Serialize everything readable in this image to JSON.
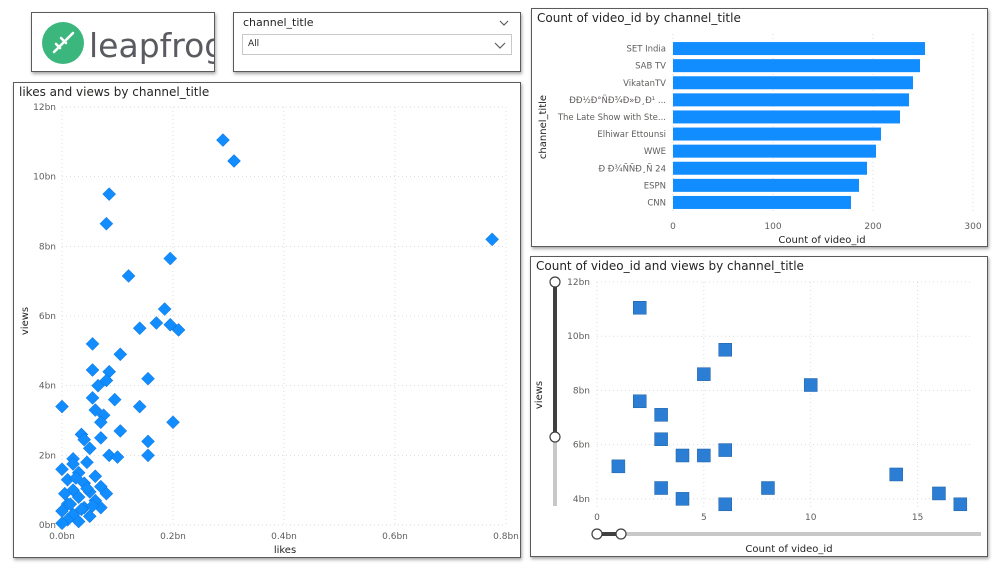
{
  "logo": {
    "text": "leapfrog",
    "colors": {
      "green": "#3bb77e",
      "text": "#595b60"
    }
  },
  "slicer": {
    "field": "channel_title",
    "value": "All"
  },
  "colors": {
    "accent": "#118dff",
    "square": "#2b7ed4",
    "grid": "#dcdcdc",
    "track": "#c8c8c8",
    "text": "#605e5c"
  },
  "chart_data": [
    {
      "type": "scatter",
      "title": "likes and views by channel_title",
      "xlabel": "likes",
      "ylabel": "views",
      "xlim": [
        0,
        0.8
      ],
      "ylim": [
        0,
        12
      ],
      "x_ticks": [
        "0.0bn",
        "0.2bn",
        "0.4bn",
        "0.6bn",
        "0.8bn"
      ],
      "y_ticks": [
        "0bn",
        "2bn",
        "4bn",
        "6bn",
        "8bn",
        "10bn",
        "12bn"
      ],
      "grid": true,
      "marker": "diamond",
      "points": [
        [
          0.29,
          11.05
        ],
        [
          0.31,
          10.45
        ],
        [
          0.085,
          9.5
        ],
        [
          0.08,
          8.65
        ],
        [
          0.775,
          8.2
        ],
        [
          0.195,
          7.65
        ],
        [
          0.12,
          7.15
        ],
        [
          0.185,
          6.2
        ],
        [
          0.17,
          5.8
        ],
        [
          0.195,
          5.75
        ],
        [
          0.21,
          5.6
        ],
        [
          0.14,
          5.65
        ],
        [
          0.055,
          5.2
        ],
        [
          0.105,
          4.9
        ],
        [
          0.055,
          4.45
        ],
        [
          0.085,
          4.4
        ],
        [
          0.155,
          4.2
        ],
        [
          0.08,
          4.15
        ],
        [
          0.065,
          4.0
        ],
        [
          0.095,
          3.6
        ],
        [
          0.055,
          3.65
        ],
        [
          0.0,
          3.4
        ],
        [
          0.14,
          3.4
        ],
        [
          0.06,
          3.3
        ],
        [
          0.075,
          3.15
        ],
        [
          0.07,
          2.95
        ],
        [
          0.2,
          2.95
        ],
        [
          0.105,
          2.7
        ],
        [
          0.035,
          2.6
        ],
        [
          0.07,
          2.5
        ],
        [
          0.155,
          2.4
        ],
        [
          0.05,
          2.2
        ],
        [
          0.085,
          2.0
        ],
        [
          0.155,
          2.0
        ],
        [
          0.02,
          1.9
        ],
        [
          0.045,
          1.8
        ],
        [
          0.0,
          1.6
        ],
        [
          0.03,
          1.5
        ],
        [
          0.06,
          1.4
        ],
        [
          0.01,
          1.3
        ],
        [
          0.04,
          1.2
        ],
        [
          0.07,
          1.1
        ],
        [
          0.02,
          1.0
        ],
        [
          0.05,
          0.95
        ],
        [
          0.005,
          0.9
        ],
        [
          0.03,
          0.8
        ],
        [
          0.06,
          0.7
        ],
        [
          0.01,
          0.6
        ],
        [
          0.04,
          0.5
        ],
        [
          0.07,
          0.5
        ],
        [
          0.0,
          0.4
        ],
        [
          0.02,
          0.3
        ],
        [
          0.05,
          0.25
        ],
        [
          0.01,
          0.15
        ],
        [
          0.03,
          0.1
        ],
        [
          0.0,
          0.05
        ],
        [
          0.015,
          0.6
        ],
        [
          0.045,
          1.05
        ],
        [
          0.025,
          1.35
        ],
        [
          0.08,
          0.9
        ],
        [
          0.035,
          0.45
        ],
        [
          0.055,
          0.55
        ],
        [
          0.02,
          1.75
        ],
        [
          0.1,
          1.95
        ],
        [
          0.04,
          2.45
        ]
      ]
    },
    {
      "type": "bar",
      "orientation": "horizontal",
      "title": "Count of video_id by channel_title",
      "xlabel": "Count of video_id",
      "ylabel": "channel_title",
      "xlim": [
        0,
        300
      ],
      "x_ticks": [
        "0",
        "100",
        "200",
        "300"
      ],
      "categories": [
        "SET India",
        "SAB TV",
        "VikatanTV",
        "ÐÐ½Ð°ÑÐ¾Ð»Ð¸Ð¹ ...",
        "The Late Show with Ste...",
        "Elhiwar Ettounsi",
        "WWE",
        "Ð Ð¾ÑÑÐ¸Ñ 24",
        "ESPN",
        "CNN"
      ],
      "values": [
        252,
        247,
        240,
        236,
        227,
        208,
        203,
        194,
        186,
        178
      ]
    },
    {
      "type": "scatter",
      "title": "Count of video_id and views by channel_title",
      "xlabel": "Count of video_id",
      "ylabel": "views",
      "xlim": [
        0,
        17.5
      ],
      "ylim": [
        3.7,
        12
      ],
      "x_ticks": [
        "0",
        "5",
        "10",
        "15"
      ],
      "y_ticks": [
        "4bn",
        "6bn",
        "8bn",
        "10bn",
        "12bn"
      ],
      "grid": true,
      "marker": "square",
      "points": [
        [
          2,
          11.05
        ],
        [
          6,
          9.5
        ],
        [
          5,
          8.6
        ],
        [
          10,
          8.2
        ],
        [
          2,
          7.6
        ],
        [
          3,
          7.1
        ],
        [
          3,
          6.2
        ],
        [
          6,
          5.8
        ],
        [
          4,
          5.6
        ],
        [
          5,
          5.6
        ],
        [
          1,
          5.2
        ],
        [
          14,
          4.9
        ],
        [
          3,
          4.4
        ],
        [
          8,
          4.4
        ],
        [
          16,
          4.2
        ],
        [
          4,
          4.0
        ],
        [
          17,
          3.8
        ],
        [
          6,
          3.8
        ]
      ]
    }
  ]
}
